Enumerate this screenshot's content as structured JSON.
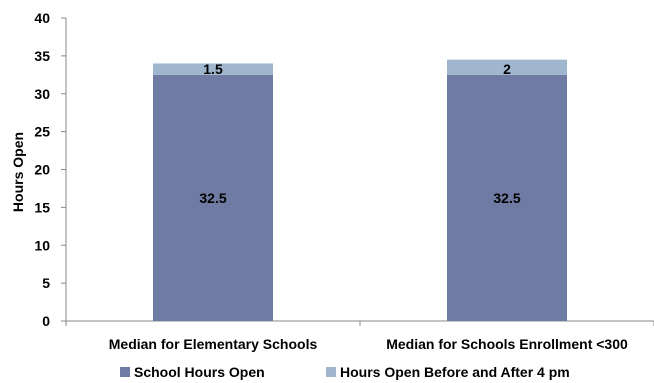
{
  "chart_data": {
    "type": "bar",
    "stacked": true,
    "title": "",
    "xlabel": "",
    "ylabel": "Hours Open",
    "ylim": [
      0,
      40
    ],
    "yticks": [
      "0",
      "5",
      "10",
      "15",
      "20",
      "25",
      "30",
      "35",
      "40"
    ],
    "categories": [
      "Median for Elementary Schools",
      "Median for Schools Enrollment <300"
    ],
    "series": [
      {
        "name": "School Hours Open",
        "values": [
          32.5,
          32.5
        ],
        "labels": [
          "32.5",
          "32.5"
        ],
        "color": "#6f7ba2"
      },
      {
        "name": "Hours Open Before and After 4 pm",
        "values": [
          1.5,
          2
        ],
        "labels": [
          "1.5",
          "2"
        ],
        "color": "#9fb6cd"
      }
    ],
    "grid": false,
    "legend": "bottom"
  }
}
